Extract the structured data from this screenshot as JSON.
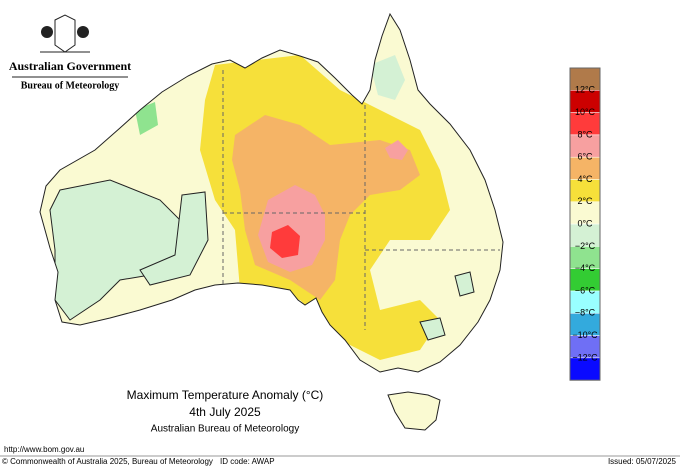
{
  "header": {
    "government": "Australian Government",
    "agency": "Bureau of Meteorology"
  },
  "map": {
    "title": "Maximum Temperature Anomaly (°C)",
    "date": "4th July 2025",
    "source": "Australian Bureau of Meteorology"
  },
  "legend": {
    "colors": [
      "#b07a4a",
      "#cc0000",
      "#ff3b3b",
      "#f7a0a0",
      "#f5b466",
      "#f6e03a",
      "#fafad2",
      "#d4f1d4",
      "#8fe38f",
      "#33cc33",
      "#99ffff",
      "#33aadd",
      "#6f6ff5",
      "#0a0aff"
    ],
    "labels": [
      "12°C",
      "10°C",
      "8°C",
      "6°C",
      "4°C",
      "2°C",
      "0°C",
      "−2°C",
      "−4°C",
      "−6°C",
      "−8°C",
      "−10°C",
      "−12°C"
    ]
  },
  "footer": {
    "url": "http://www.bom.gov.au",
    "copyright": "© Commonwealth of Australia 2025, Bureau of Meteorology",
    "id_code": "ID code: AWAP",
    "issued": "Issued: 05/07/2025"
  }
}
